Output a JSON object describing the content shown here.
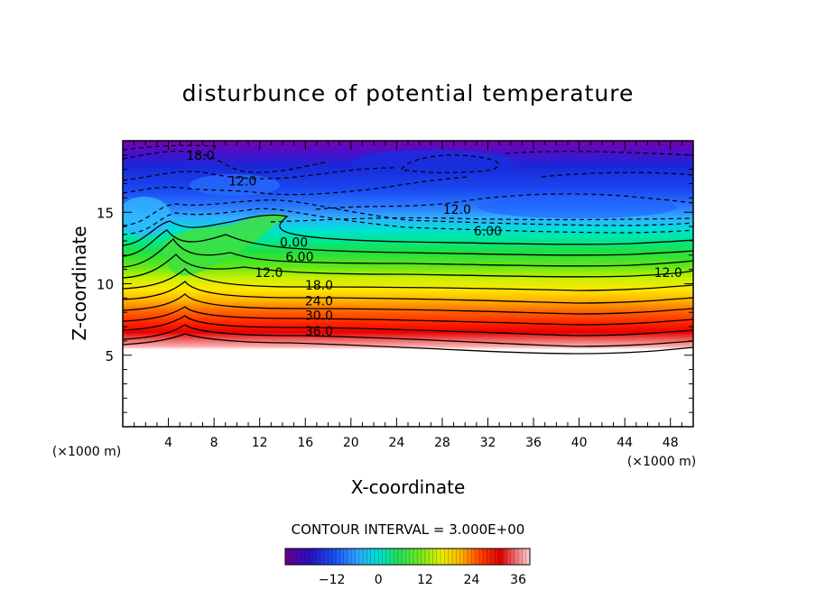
{
  "chart_data": {
    "type": "heatmap",
    "title": "disturbunce of potential temperature",
    "xlabel": "X-coordinate",
    "ylabel": "Z-coordinate",
    "x_unit": "(×1000 m)",
    "y_unit": "(×1000 m)",
    "xlim": [
      0,
      50
    ],
    "ylim": [
      0,
      20
    ],
    "x_ticks": [
      4,
      8,
      12,
      16,
      20,
      24,
      28,
      32,
      36,
      40,
      44,
      48
    ],
    "y_ticks": [
      5,
      10,
      15
    ],
    "contour_interval": "CONTOUR INTERVAL = 3.000E+00",
    "colorbar": {
      "min": -24,
      "max": 39,
      "tick_values": [
        -12,
        0,
        12,
        24,
        36
      ],
      "tick_labels": [
        "−12",
        "0",
        "12",
        "24",
        "36"
      ]
    },
    "contour_labels": [
      {
        "text": "18.0",
        "x": 6.8,
        "z": 19.0
      },
      {
        "text": "12.0",
        "x": 10.5,
        "z": 17.2
      },
      {
        "text": "12.0",
        "x": 29.3,
        "z": 15.2
      },
      {
        "text": "6.00",
        "x": 32.0,
        "z": 13.7
      },
      {
        "text": "0.00",
        "x": 15.0,
        "z": 12.9
      },
      {
        "text": "6.00",
        "x": 15.5,
        "z": 11.9
      },
      {
        "text": "12.0",
        "x": 12.8,
        "z": 10.8
      },
      {
        "text": "12.0",
        "x": 47.8,
        "z": 10.8
      },
      {
        "text": "18.0",
        "x": 17.2,
        "z": 9.9
      },
      {
        "text": "24.0",
        "x": 17.2,
        "z": 8.8
      },
      {
        "text": "30.0",
        "x": 17.2,
        "z": 7.8
      },
      {
        "text": "36.0",
        "x": 17.2,
        "z": 6.7
      }
    ]
  }
}
